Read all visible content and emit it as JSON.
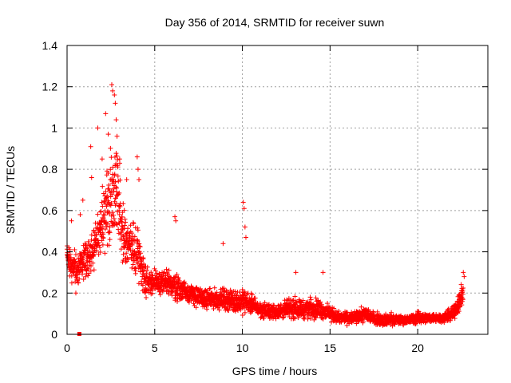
{
  "chart_data": {
    "type": "scatter",
    "title": "Day 356 of 2014, SRMTID for receiver suwn",
    "xlabel": "GPS time / hours",
    "ylabel": "SRMTID / TECUs",
    "xlim": [
      0,
      24
    ],
    "ylim": [
      0,
      1.4
    ],
    "xticks": [
      0,
      5,
      10,
      15,
      20
    ],
    "yticks": [
      0,
      0.2,
      0.4,
      0.6,
      0.8,
      1,
      1.2,
      1.4
    ],
    "ytick_labels": [
      "0",
      "0.2",
      "0.4",
      "0.6",
      "0.8",
      "1",
      "1.2",
      "1.4"
    ],
    "grid": true,
    "marker": "plus",
    "color": "#ff0000",
    "series": [
      {
        "name": "suwn",
        "envelope": {
          "x": [
            0.0,
            0.3,
            0.6,
            1.0,
            1.3,
            1.6,
            2.0,
            2.2,
            2.5,
            2.8,
            3.0,
            3.3,
            3.6,
            4.0,
            4.5,
            5.0,
            5.5,
            6.0,
            6.5,
            7.0,
            7.5,
            8.0,
            8.5,
            9.0,
            9.5,
            10.0,
            10.5,
            11.0,
            11.5,
            12.0,
            12.5,
            13.0,
            13.5,
            14.0,
            14.5,
            15.0,
            15.5,
            16.0,
            16.5,
            17.0,
            17.5,
            18.0,
            18.5,
            19.0,
            19.5,
            20.0,
            20.5,
            21.0,
            21.5,
            22.0,
            22.3,
            22.6
          ],
          "center": [
            0.36,
            0.34,
            0.3,
            0.36,
            0.38,
            0.44,
            0.52,
            0.6,
            0.68,
            0.7,
            0.6,
            0.45,
            0.42,
            0.4,
            0.26,
            0.25,
            0.25,
            0.24,
            0.22,
            0.2,
            0.18,
            0.17,
            0.17,
            0.17,
            0.16,
            0.16,
            0.15,
            0.12,
            0.11,
            0.11,
            0.12,
            0.13,
            0.12,
            0.13,
            0.12,
            0.1,
            0.08,
            0.08,
            0.08,
            0.1,
            0.08,
            0.07,
            0.07,
            0.07,
            0.07,
            0.08,
            0.08,
            0.08,
            0.08,
            0.1,
            0.15,
            0.2
          ],
          "spread": [
            0.08,
            0.12,
            0.1,
            0.12,
            0.12,
            0.16,
            0.2,
            0.26,
            0.3,
            0.34,
            0.3,
            0.16,
            0.14,
            0.2,
            0.1,
            0.08,
            0.1,
            0.1,
            0.08,
            0.07,
            0.07,
            0.06,
            0.07,
            0.07,
            0.07,
            0.08,
            0.06,
            0.05,
            0.05,
            0.05,
            0.06,
            0.07,
            0.06,
            0.07,
            0.06,
            0.05,
            0.04,
            0.04,
            0.04,
            0.05,
            0.04,
            0.04,
            0.04,
            0.03,
            0.03,
            0.04,
            0.03,
            0.03,
            0.03,
            0.05,
            0.07,
            0.08
          ]
        },
        "notable_points": [
          {
            "x": 0.1,
            "y": 0.42
          },
          {
            "x": 0.25,
            "y": 0.55
          },
          {
            "x": 0.5,
            "y": 0.2
          },
          {
            "x": 0.75,
            "y": 0.58
          },
          {
            "x": 0.9,
            "y": 0.65
          },
          {
            "x": 1.35,
            "y": 0.91
          },
          {
            "x": 1.4,
            "y": 0.76
          },
          {
            "x": 1.75,
            "y": 1.0
          },
          {
            "x": 2.0,
            "y": 0.85
          },
          {
            "x": 2.2,
            "y": 1.07
          },
          {
            "x": 2.35,
            "y": 0.97
          },
          {
            "x": 2.55,
            "y": 1.21
          },
          {
            "x": 2.6,
            "y": 1.18
          },
          {
            "x": 2.7,
            "y": 1.16
          },
          {
            "x": 2.75,
            "y": 1.12
          },
          {
            "x": 2.8,
            "y": 1.04
          },
          {
            "x": 2.85,
            "y": 0.96
          },
          {
            "x": 3.0,
            "y": 0.85
          },
          {
            "x": 3.4,
            "y": 0.75
          },
          {
            "x": 4.0,
            "y": 0.86
          },
          {
            "x": 4.05,
            "y": 0.8
          },
          {
            "x": 4.1,
            "y": 0.75
          },
          {
            "x": 6.15,
            "y": 0.57
          },
          {
            "x": 6.2,
            "y": 0.55
          },
          {
            "x": 8.9,
            "y": 0.44
          },
          {
            "x": 10.05,
            "y": 0.64
          },
          {
            "x": 10.1,
            "y": 0.61
          },
          {
            "x": 10.15,
            "y": 0.52
          },
          {
            "x": 10.2,
            "y": 0.47
          },
          {
            "x": 13.05,
            "y": 0.3
          },
          {
            "x": 14.6,
            "y": 0.3
          },
          {
            "x": 22.6,
            "y": 0.3
          },
          {
            "x": 22.65,
            "y": 0.28
          }
        ],
        "outlier_square": {
          "x": 0.7,
          "y": 0.0
        }
      }
    ]
  }
}
